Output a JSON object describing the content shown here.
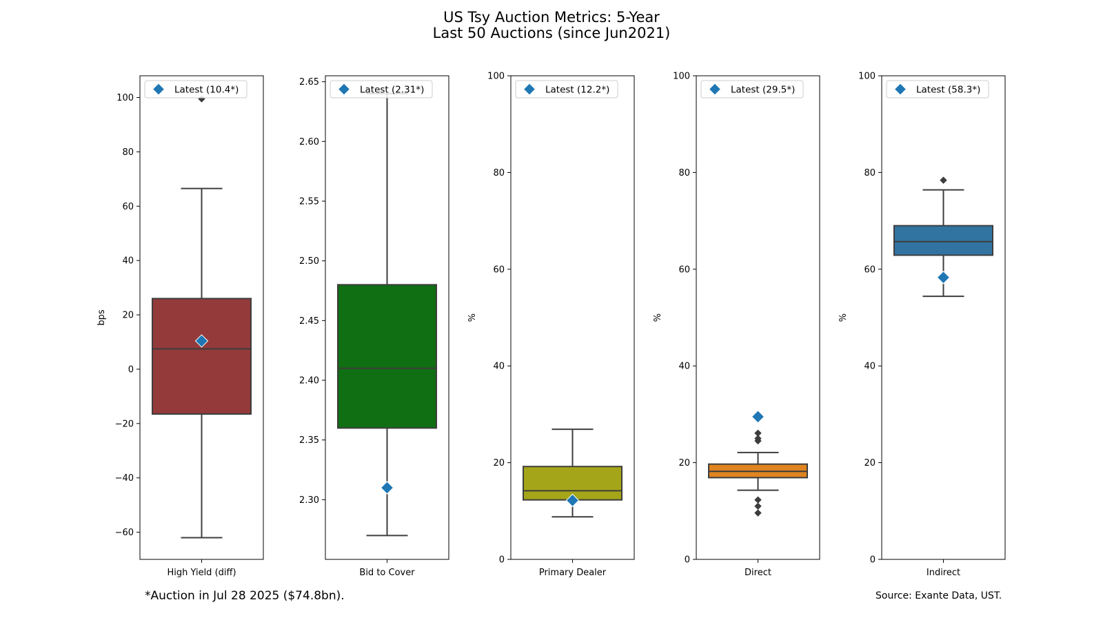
{
  "title_line1": "US Tsy Auction Metrics: 5-Year",
  "title_line2": "Last 50 Auctions (since Jun2021)",
  "footnote": "*Auction in Jul 28 2025 ($74.8bn).",
  "source": "Source: Exante Data, UST.",
  "chart_data": [
    {
      "type": "box",
      "category": "High Yield (diff)",
      "ylabel": "bps",
      "ylim": [
        -70,
        108
      ],
      "yticks": [
        -60,
        -40,
        -20,
        0,
        20,
        40,
        60,
        80,
        100
      ],
      "tick_labels": [
        "−60",
        "−40",
        "−20",
        "0",
        "20",
        "40",
        "60",
        "80",
        "100"
      ],
      "whisker_low": -62,
      "q1": -16.5,
      "median": 7.5,
      "q3": 26,
      "whisker_high": 66.5,
      "outliers": [
        99.5
      ],
      "latest": 10.4,
      "latest_label": "Latest (10.4*)",
      "color": "#943a3a"
    },
    {
      "type": "box",
      "category": "Bid to Cover",
      "ylabel": "",
      "ylim": [
        2.25,
        2.655
      ],
      "yticks": [
        2.3,
        2.35,
        2.4,
        2.45,
        2.5,
        2.55,
        2.6,
        2.65
      ],
      "tick_labels": [
        "2.30",
        "2.35",
        "2.40",
        "2.45",
        "2.50",
        "2.55",
        "2.60",
        "2.65"
      ],
      "whisker_low": 2.27,
      "q1": 2.36,
      "median": 2.41,
      "q3": 2.48,
      "whisker_high": 2.64,
      "outliers": [],
      "latest": 2.31,
      "latest_label": "Latest (2.31*)",
      "color": "#106f12"
    },
    {
      "type": "box",
      "category": "Primary Dealer",
      "ylabel": "%",
      "ylim": [
        0,
        100
      ],
      "yticks": [
        0,
        20,
        40,
        60,
        80,
        100
      ],
      "tick_labels": [
        "0",
        "20",
        "40",
        "60",
        "80",
        "100"
      ],
      "whisker_low": 8.8,
      "q1": 12.3,
      "median": 14.2,
      "q3": 19.2,
      "whisker_high": 26.9,
      "outliers": [],
      "latest": 12.2,
      "latest_label": "Latest (12.2*)",
      "color": "#a5a519"
    },
    {
      "type": "box",
      "category": "Direct",
      "ylabel": "%",
      "ylim": [
        0,
        100
      ],
      "yticks": [
        0,
        20,
        40,
        60,
        80,
        100
      ],
      "tick_labels": [
        "0",
        "20",
        "40",
        "60",
        "80",
        "100"
      ],
      "whisker_low": 14.3,
      "q1": 16.9,
      "median": 18.2,
      "q3": 19.7,
      "whisker_high": 22.1,
      "outliers": [
        9.6,
        11.0,
        12.3,
        24.5,
        25.0,
        26.1
      ],
      "latest": 29.5,
      "latest_label": "Latest (29.5*)",
      "color": "#df8420"
    },
    {
      "type": "box",
      "category": "Indirect",
      "ylabel": "%",
      "ylim": [
        0,
        100
      ],
      "yticks": [
        0,
        20,
        40,
        60,
        80,
        100
      ],
      "tick_labels": [
        "0",
        "20",
        "40",
        "60",
        "80",
        "100"
      ],
      "whisker_low": 54.4,
      "q1": 62.9,
      "median": 65.7,
      "q3": 69.0,
      "whisker_high": 76.4,
      "outliers": [
        78.4
      ],
      "latest": 58.3,
      "latest_label": "Latest (58.3*)",
      "color": "#3274a1"
    }
  ],
  "marker_color": "#1f77b4",
  "line_color": "#3d3d3d"
}
